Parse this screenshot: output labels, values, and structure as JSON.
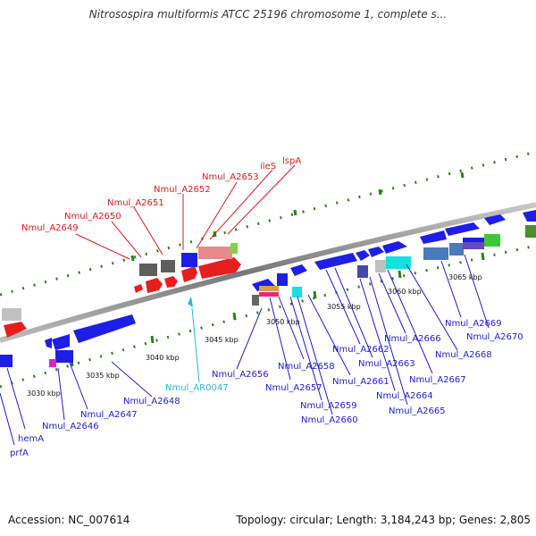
{
  "title": "Nitrosospira multiformis ATCC 25196 chromosome 1, complete s...",
  "accession_text": "Accession: NC_007614",
  "topology_text": "Topology: circular; Length: 3,184,243 bp; Genes: 2,805",
  "colors": {
    "label_red": "#d41c1c",
    "label_blue": "#1c1ccc",
    "label_cyan": "#29b6d6",
    "backbone": "#888888",
    "tick_green": "#2e7d1e"
  },
  "kbp_labels": [
    "3030 kbp",
    "3035 kbp",
    "3040 kbp",
    "3045 kbp",
    "3050 kbp",
    "3055 kbp",
    "3060 kbp",
    "3065 kbp"
  ],
  "gene_labels_top": [
    "Nmul_A2649",
    "Nmul_A2650",
    "Nmul_A2651",
    "Nmul_A2652",
    "Nmul_A2653",
    "ileS",
    "lspA"
  ],
  "gene_labels_bottom": [
    "Nmul_A2646",
    "Nmul_A2647",
    "Nmul_A2648",
    "Nmul_AR0047",
    "Nmul_A2656",
    "Nmul_A2657",
    "Nmul_A2658",
    "Nmul_A2659",
    "Nmul_A2660",
    "Nmul_A2661",
    "Nmul_A2662",
    "Nmul_A2663",
    "Nmul_A2664",
    "Nmul_A2665",
    "Nmul_A2666",
    "Nmul_A2667",
    "Nmul_A2668",
    "Nmul_A2669",
    "Nmul_A2670",
    "hemA",
    "prfA"
  ]
}
